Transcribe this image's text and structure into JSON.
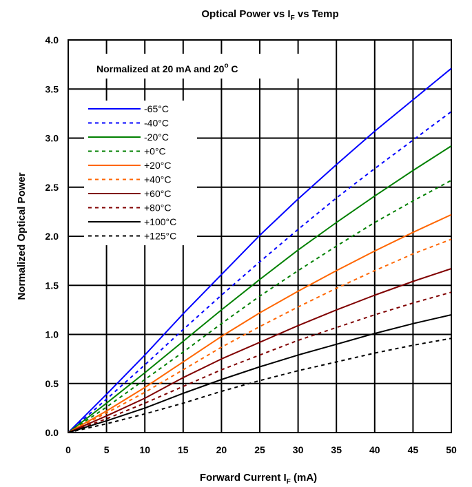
{
  "chart_data": {
    "type": "line",
    "title": {
      "main": "Optical Power vs I",
      "sub": "F",
      "tail": "  vs Temp"
    },
    "xlabel": {
      "main": "Forward Current I",
      "sub": "F",
      "tail": " (mA)"
    },
    "ylabel": "Normalized Optical Power",
    "annotation": {
      "main": "Normalized at 20 mA and 20",
      "sup": "o",
      "tail": " C"
    },
    "xlim": [
      0,
      50
    ],
    "ylim": [
      0,
      4
    ],
    "x_ticks": [
      "0",
      "5",
      "10",
      "15",
      "20",
      "25",
      "30",
      "35",
      "40",
      "45",
      "50"
    ],
    "y_ticks": [
      "0.0",
      "0.5",
      "1.0",
      "1.5",
      "2.0",
      "2.5",
      "3.0",
      "3.5",
      "4.0"
    ],
    "grid": true,
    "legend_position": "top-left",
    "x": [
      0,
      5,
      10,
      15,
      20,
      25,
      30,
      35,
      40,
      45,
      50
    ],
    "series": [
      {
        "name": "-65°C",
        "color": "#0000ff",
        "dashed": false,
        "values": [
          0,
          0.39,
          0.79,
          1.21,
          1.61,
          2.01,
          2.38,
          2.73,
          3.07,
          3.39,
          3.71
        ]
      },
      {
        "name": "-40°C",
        "color": "#0000ff",
        "dashed": true,
        "values": [
          0,
          0.34,
          0.69,
          1.05,
          1.4,
          1.74,
          2.07,
          2.39,
          2.69,
          2.98,
          3.27
        ]
      },
      {
        "name": "-20°C",
        "color": "#008000",
        "dashed": false,
        "values": [
          0,
          0.3,
          0.61,
          0.93,
          1.25,
          1.56,
          1.86,
          2.14,
          2.41,
          2.67,
          2.92
        ]
      },
      {
        "name": "+0°C",
        "color": "#008000",
        "dashed": true,
        "values": [
          0,
          0.26,
          0.54,
          0.82,
          1.11,
          1.39,
          1.65,
          1.9,
          2.14,
          2.36,
          2.57
        ]
      },
      {
        "name": "+20°C",
        "color": "#ff6600",
        "dashed": false,
        "values": [
          0,
          0.22,
          0.46,
          0.72,
          0.98,
          1.22,
          1.44,
          1.65,
          1.85,
          2.04,
          2.22
        ]
      },
      {
        "name": "+40°C",
        "color": "#ff6600",
        "dashed": true,
        "values": [
          0,
          0.2,
          0.41,
          0.64,
          0.87,
          1.08,
          1.28,
          1.47,
          1.65,
          1.82,
          1.97
        ]
      },
      {
        "name": "+60°C",
        "color": "#800000",
        "dashed": false,
        "values": [
          0,
          0.17,
          0.35,
          0.56,
          0.75,
          0.92,
          1.09,
          1.25,
          1.4,
          1.54,
          1.67
        ]
      },
      {
        "name": "+80°C",
        "color": "#800000",
        "dashed": true,
        "values": [
          0,
          0.14,
          0.3,
          0.47,
          0.64,
          0.79,
          0.94,
          1.07,
          1.2,
          1.32,
          1.43
        ]
      },
      {
        "name": "+100°C",
        "color": "#000000",
        "dashed": false,
        "values": [
          0,
          0.12,
          0.25,
          0.4,
          0.54,
          0.67,
          0.79,
          0.9,
          1.01,
          1.11,
          1.2
        ]
      },
      {
        "name": "+125°C",
        "color": "#000000",
        "dashed": true,
        "values": [
          0,
          0.09,
          0.19,
          0.3,
          0.42,
          0.53,
          0.63,
          0.72,
          0.81,
          0.89,
          0.96
        ]
      }
    ]
  }
}
